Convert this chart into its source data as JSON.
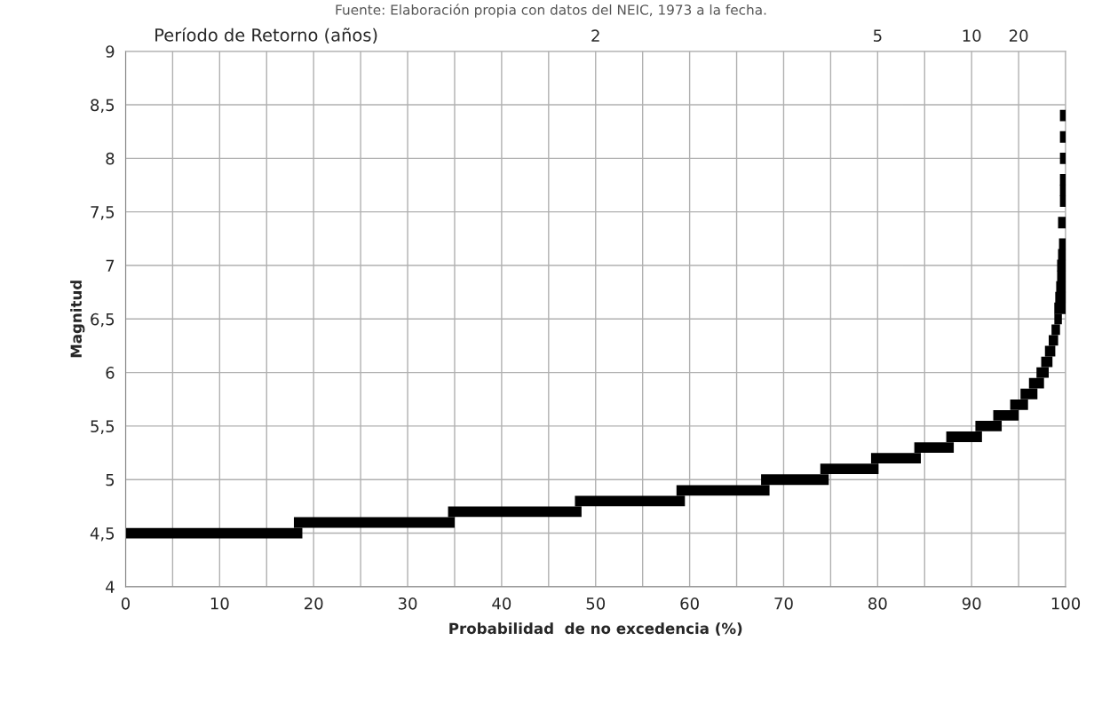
{
  "chart_data": {
    "type": "line",
    "xlabel": "Probabilidad  de no excedencia (%)",
    "ylabel": "Magnitud",
    "annotations": [
      "Fuente: Elaboración propia con datos del NEIC, 1973 a la fecha.",
      "Período de Retorno (años)",
      "2",
      "5",
      "10",
      "20"
    ],
    "series": [
      {
        "color": "#000000",
        "x": [
          0,
          18.8,
          null,
          17.9,
          35.0,
          null,
          34.3,
          48.5,
          null,
          47.8,
          59.5,
          null,
          58.6,
          68.5,
          null,
          67.6,
          74.8,
          null,
          73.9,
          80.1,
          null,
          79.3,
          84.6,
          null,
          83.9,
          88.1,
          null,
          87.3,
          91.1,
          null,
          90.4,
          93.2,
          null,
          92.3,
          95.0,
          null,
          94.1,
          96.0,
          null,
          95.2,
          97.0,
          null,
          96.1,
          97.7,
          null,
          96.9,
          98.2,
          null,
          97.4,
          98.6,
          null,
          97.8,
          98.9,
          null,
          98.2,
          99.2,
          null,
          98.5,
          99.4,
          null,
          98.8,
          99.6
        ],
        "values": [
          4.5,
          4.5,
          null,
          4.6,
          4.6,
          null,
          4.7,
          4.7,
          null,
          4.8,
          4.8,
          null,
          4.9,
          4.9,
          null,
          5.0,
          5.0,
          null,
          5.1,
          5.1,
          null,
          5.2,
          5.2,
          null,
          5.3,
          5.3,
          null,
          5.4,
          5.4,
          null,
          5.5,
          5.5,
          null,
          5.6,
          5.6,
          null,
          5.7,
          5.7,
          null,
          5.8,
          5.8,
          null,
          5.9,
          5.9,
          null,
          6.0,
          6.0,
          null,
          6.1,
          6.1,
          null,
          6.2,
          6.2,
          null,
          6.3,
          6.3,
          null,
          6.4,
          6.4,
          null,
          6.5,
          6.5
        ]
      },
      {
        "type": "scatter",
        "color": "#000000",
        "marker": "square",
        "x": [
          99.4,
          99.5,
          99.6,
          99.7,
          99.7,
          99.8,
          99.9,
          99.8,
          100,
          100,
          100,
          100,
          100,
          100
        ],
        "values": [
          6.6,
          6.7,
          6.8,
          6.9,
          7.0,
          7.1,
          7.2,
          7.4,
          7.6,
          7.7,
          7.8,
          8.0,
          8.2,
          8.4
        ]
      }
    ],
    "xlim": [
      0,
      100
    ],
    "xticks": [
      0,
      {
        "value": 5,
        "label": null
      },
      10,
      {
        "value": 15,
        "label": null
      },
      20,
      {
        "value": 25,
        "label": null
      },
      30,
      {
        "value": 35,
        "label": null
      },
      40,
      {
        "value": 45,
        "label": null
      },
      50,
      {
        "value": 55,
        "label": null
      },
      60,
      {
        "value": 65,
        "label": null
      },
      70,
      {
        "value": 75,
        "label": null
      },
      80,
      {
        "value": 85,
        "label": null
      },
      90,
      {
        "value": 95,
        "label": null
      },
      100
    ],
    "ylim": [
      4,
      9
    ],
    "yticks": [
      4,
      {
        "value": 4.5,
        "label": "4,5"
      },
      5,
      {
        "value": 5.5,
        "label": "5,5"
      },
      6,
      {
        "value": 6.5,
        "label": "6,5"
      },
      7,
      {
        "value": 7.5,
        "label": "7,5"
      },
      8,
      {
        "value": 8.5,
        "label": "8,5"
      },
      9
    ],
    "grid": true,
    "legend": false
  }
}
